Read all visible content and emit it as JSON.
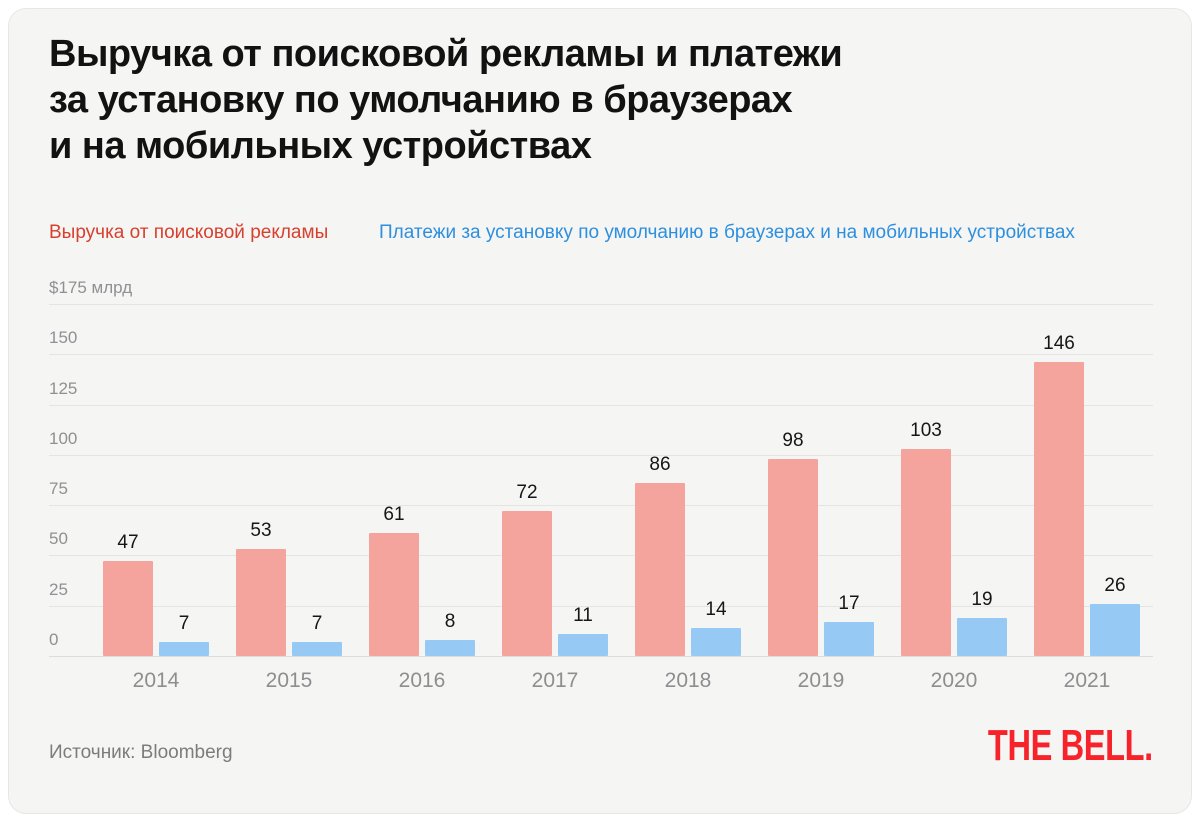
{
  "title": "Выручка от поисковой рекламы и платежи\nза установку по умолчанию в браузерах\nи на мобильных устройствах",
  "legend": [
    {
      "label": "Выручка от поисковой рекламы",
      "color": "#D8402E"
    },
    {
      "label": "Платежи за установку по умолчанию в браузерах и на мобильных устройствах",
      "color": "#2E8FDE"
    }
  ],
  "chart_data": {
    "type": "bar",
    "categories": [
      "2014",
      "2015",
      "2016",
      "2017",
      "2018",
      "2019",
      "2020",
      "2021"
    ],
    "series": [
      {
        "name": "Выручка от поисковой рекламы",
        "color": "#F5A39D",
        "values": [
          47,
          53,
          61,
          72,
          86,
          98,
          103,
          146
        ]
      },
      {
        "name": "Платежи за установку по умолчанию в браузерах и на мобильных устройствах",
        "color": "#96CAF4",
        "values": [
          7,
          7,
          8,
          11,
          14,
          17,
          19,
          26
        ]
      }
    ],
    "ylabel_top": "$175 млрд",
    "yticks": [
      175,
      150,
      125,
      100,
      75,
      50,
      25,
      0
    ],
    "ylim": [
      0,
      175
    ],
    "grid": true,
    "legend_position": "top",
    "value_labels": true
  },
  "footer": {
    "source": "Источник: Bloomberg",
    "logo": "THE BELL."
  }
}
